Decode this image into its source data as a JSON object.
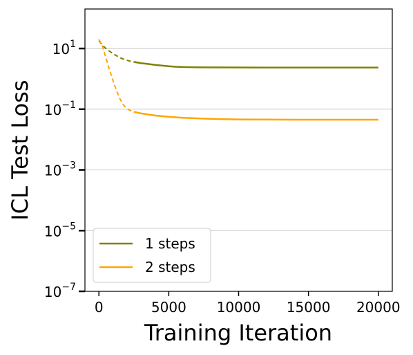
{
  "chart_data": {
    "type": "line",
    "xlabel": "Training Iteration",
    "ylabel": "ICL Test Loss",
    "yscale": "log",
    "xlim": [
      -1000,
      21000
    ],
    "ylim": [
      1e-07,
      200
    ],
    "xticks": [
      0,
      5000,
      10000,
      15000,
      20000
    ],
    "xtick_labels": [
      "0",
      "5000",
      "10000",
      "15000",
      "20000"
    ],
    "yticks": [
      1e-07,
      1e-05,
      0.001,
      0.1,
      10
    ],
    "ytick_labels": [
      {
        "base": "10",
        "exp": "−7"
      },
      {
        "base": "10",
        "exp": "−5"
      },
      {
        "base": "10",
        "exp": "−3"
      },
      {
        "base": "10",
        "exp": "−1"
      },
      {
        "base": "10",
        "exp": "1"
      }
    ],
    "grid": "horizontal",
    "legend_position": "lower-left",
    "series": [
      {
        "name": "1 steps",
        "color": "#808000",
        "dashed_until": 2500,
        "x": [
          0,
          250,
          500,
          750,
          1000,
          1250,
          1500,
          1750,
          2000,
          2250,
          2500,
          3000,
          3500,
          4000,
          4500,
          5000,
          5500,
          6000,
          7000,
          8000,
          10000,
          12000,
          14000,
          16000,
          18000,
          20000
        ],
        "y": [
          18,
          13,
          10,
          8.2,
          6.8,
          5.8,
          5.0,
          4.5,
          4.1,
          3.8,
          3.6,
          3.3,
          3.1,
          2.9,
          2.75,
          2.6,
          2.5,
          2.45,
          2.4,
          2.38,
          2.37,
          2.36,
          2.36,
          2.36,
          2.36,
          2.36
        ]
      },
      {
        "name": "2 steps",
        "color": "#FFA500",
        "dashed_until": 2500,
        "x": [
          0,
          250,
          500,
          750,
          1000,
          1250,
          1500,
          1750,
          2000,
          2250,
          2500,
          3000,
          3500,
          4000,
          4500,
          5000,
          5500,
          6000,
          7000,
          8000,
          9000,
          10000,
          12000,
          14000,
          16000,
          18000,
          20000
        ],
        "y": [
          20,
          12,
          5.0,
          2.0,
          0.9,
          0.42,
          0.22,
          0.14,
          0.105,
          0.09,
          0.082,
          0.073,
          0.067,
          0.062,
          0.059,
          0.056,
          0.054,
          0.052,
          0.05,
          0.048,
          0.047,
          0.046,
          0.0455,
          0.045,
          0.045,
          0.045,
          0.045
        ]
      }
    ]
  }
}
